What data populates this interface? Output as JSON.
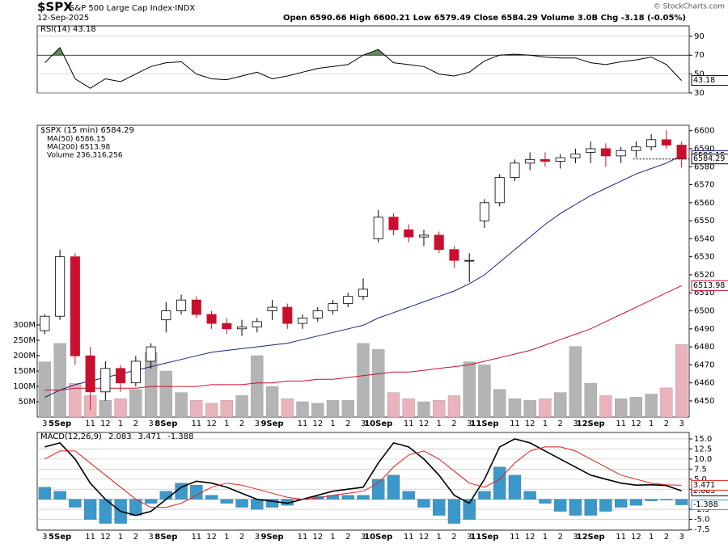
{
  "header": {
    "symbol": "$SPX",
    "name": "S&P 500 Large Cap Index·INDX",
    "date": "12-Sep-2025",
    "quote": "Open 6590.66  High 6600.21  Low 6579.49  Close 6584.29  Volume 3.0B  Chg -3.18 (-0.05%)",
    "copyright": "© StockCharts.com"
  },
  "chart_data": [
    {
      "type": "line",
      "title": "RSI(14) 43.18",
      "color": "#000000",
      "overbought_level": 70,
      "overbought_color": "#5f8f5a",
      "ylim": [
        30,
        101
      ],
      "yticks": [
        30,
        50,
        70,
        90
      ],
      "values": [
        62,
        78,
        45,
        35,
        45,
        42,
        50,
        58,
        62,
        63,
        50,
        45,
        44,
        48,
        52,
        45,
        48,
        52,
        56,
        58,
        60,
        70,
        76,
        62,
        60,
        58,
        50,
        48,
        52,
        64,
        70,
        71,
        70,
        68,
        67,
        67,
        62,
        60,
        63,
        65,
        68,
        60,
        43.18
      ]
    },
    {
      "type": "candlestick",
      "title": "$SPX (15 min) 6584.29",
      "up_color": "#ffffff",
      "down_color": "#c8102e",
      "ylim": [
        6441,
        6603
      ],
      "yticks": [
        6450,
        6460,
        6470,
        6480,
        6490,
        6500,
        6510,
        6520,
        6530,
        6540,
        6550,
        6560,
        6570,
        6580,
        6590,
        6600
      ],
      "categories": [
        "3",
        "5Sep",
        null,
        "11",
        "12",
        "1",
        "2",
        "3",
        "8Sep",
        null,
        "11",
        "12",
        "1",
        "2",
        "3",
        "9Sep",
        null,
        "11",
        "12",
        "1",
        "2",
        "3",
        "10Sep",
        null,
        "11",
        "12",
        "1",
        "2",
        "3",
        "11Sep",
        null,
        "11",
        "12",
        "1",
        "2",
        "3",
        "12Sep",
        null,
        "11",
        "12",
        "1",
        "2",
        "3"
      ],
      "open": [
        6489,
        6497,
        6530,
        6475,
        6455,
        6468,
        6460,
        6472,
        6495,
        6500,
        6506,
        6498,
        6493,
        6490,
        6491,
        6500,
        6502,
        6493,
        6496,
        6500,
        6504,
        6508,
        6540,
        6552,
        6545,
        6541,
        6542,
        6534,
        6528,
        6550,
        6560,
        6574,
        6582,
        6584,
        6583,
        6585,
        6588,
        6590,
        6586,
        6589,
        6591,
        6595,
        6592
      ],
      "high": [
        6498,
        6534,
        6532,
        6480,
        6472,
        6470,
        6475,
        6482,
        6505,
        6509,
        6508,
        6500,
        6496,
        6495,
        6496,
        6506,
        6504,
        6498,
        6502,
        6506,
        6510,
        6518,
        6556,
        6554,
        6548,
        6545,
        6544,
        6536,
        6532,
        6562,
        6576,
        6584,
        6588,
        6588,
        6587,
        6590,
        6594,
        6593,
        6591,
        6594,
        6598,
        6600.21,
        6594
      ],
      "low": [
        6487,
        6495,
        6470,
        6445,
        6450,
        6455,
        6458,
        6468,
        6488,
        6498,
        6496,
        6490,
        6487,
        6486,
        6488,
        6495,
        6490,
        6490,
        6494,
        6498,
        6502,
        6506,
        6538,
        6542,
        6538,
        6536,
        6532,
        6524,
        6516,
        6546,
        6558,
        6572,
        6578,
        6580,
        6579,
        6582,
        6582,
        6580,
        6582,
        6585,
        6589,
        6590,
        6579.49
      ],
      "close": [
        6497,
        6530,
        6475,
        6455,
        6468,
        6460,
        6472,
        6480,
        6500,
        6506,
        6498,
        6493,
        6490,
        6491,
        6494,
        6502,
        6493,
        6496,
        6500,
        6504,
        6508,
        6512,
        6552,
        6545,
        6541,
        6542,
        6534,
        6528,
        6528,
        6560,
        6574,
        6582,
        6584,
        6583,
        6585,
        6587,
        6590,
        6586,
        6589,
        6591,
        6595,
        6592,
        6584.29
      ],
      "series": [
        {
          "name": "MA(50) 6586.15",
          "color": "#1a237e",
          "values": [
            6452,
            6456,
            6459,
            6461,
            6463,
            6465,
            6467,
            6469,
            6471,
            6473,
            6475,
            6477,
            6478,
            6479,
            6480,
            6481,
            6482,
            6484,
            6486,
            6488,
            6490,
            6492,
            6496,
            6499,
            6502,
            6505,
            6508,
            6511,
            6515,
            6520,
            6527,
            6534,
            6541,
            6548,
            6554,
            6559,
            6564,
            6568,
            6572,
            6576,
            6579,
            6582,
            6586.15
          ]
        },
        {
          "name": "MA(200) 6513.98",
          "color": "#c8102e",
          "values": [
            6456,
            6456,
            6457,
            6457,
            6457,
            6457,
            6457,
            6458,
            6458,
            6458,
            6458,
            6459,
            6459,
            6459,
            6460,
            6460,
            6461,
            6461,
            6462,
            6462,
            6463,
            6464,
            6465,
            6466,
            6466,
            6467,
            6468,
            6469,
            6470,
            6472,
            6474,
            6476,
            6478,
            6481,
            6484,
            6487,
            6490,
            6494,
            6498,
            6502,
            6506,
            6510,
            6513.98
          ]
        }
      ],
      "volume": {
        "name": "Volume 236,316,256",
        "up_color": "#b4b4b4",
        "down_color": "#eab3bb",
        "vlim": [
          0,
          950
        ],
        "vticks": [
          {
            "value": 50,
            "label": "50M"
          },
          {
            "value": 100,
            "label": "100M"
          },
          {
            "value": 150,
            "label": "150M"
          },
          {
            "value": 200,
            "label": "200M"
          },
          {
            "value": 250,
            "label": "250M"
          },
          {
            "value": 300,
            "label": "300M"
          }
        ],
        "values": [
          180,
          240,
          110,
          70,
          55,
          60,
          90,
          210,
          150,
          80,
          55,
          45,
          55,
          70,
          200,
          100,
          60,
          50,
          45,
          55,
          55,
          240,
          220,
          80,
          60,
          50,
          55,
          70,
          180,
          170,
          90,
          60,
          55,
          60,
          80,
          230,
          110,
          70,
          60,
          65,
          75,
          95,
          236.316256
        ]
      }
    },
    {
      "type": "line",
      "title": "MACD(12,26,9)",
      "ylim": [
        -7.7,
        16.6
      ],
      "yticks": [
        {
          "value": 15,
          "label": "15.0"
        },
        12.5,
        {
          "value": 10,
          "label": "10.0"
        },
        7.5,
        {
          "value": 5,
          "label": "5.0"
        },
        2.5,
        -2.5,
        {
          "value": -5,
          "label": "-5.0"
        },
        -7.5
      ],
      "categories": [
        "3",
        "5Sep",
        null,
        "11",
        "12",
        "1",
        "2",
        "3",
        "8Sep",
        null,
        "11",
        "12",
        "1",
        "2",
        "3",
        "9Sep",
        null,
        "11",
        "12",
        "1",
        "2",
        "3",
        "10Sep",
        null,
        "11",
        "12",
        "1",
        "2",
        "3",
        "11Sep",
        null,
        "11",
        "12",
        "1",
        "2",
        "3",
        "12Sep",
        null,
        "11",
        "12",
        "1",
        "2",
        "3"
      ],
      "series": [
        {
          "name": "2.083",
          "color": "#000000",
          "style": "line",
          "values": [
            13,
            14,
            10,
            4,
            0,
            -3,
            -4,
            -3,
            0,
            3,
            4.5,
            4,
            3,
            1.5,
            0,
            -0.5,
            -1,
            0,
            1,
            2,
            2.5,
            3,
            9,
            14,
            13,
            10,
            6,
            1,
            -1,
            5,
            13,
            15,
            14,
            12,
            10,
            8,
            6,
            5,
            4,
            3.5,
            3.6,
            3.4,
            2.083
          ]
        },
        {
          "name": "3.471",
          "color": "#e0201c",
          "style": "line",
          "values": [
            10,
            12,
            12,
            9,
            6,
            3,
            0,
            -2,
            -2,
            -1,
            1,
            3,
            4,
            3.5,
            2.5,
            1.5,
            0.5,
            0,
            0.3,
            1,
            1.5,
            2,
            4,
            8,
            11,
            12,
            10,
            7,
            4,
            3,
            5,
            9,
            12,
            13,
            13,
            12,
            10,
            8,
            6,
            5,
            4,
            3.6,
            3.471
          ]
        },
        {
          "name": "-1.388",
          "color": "#3c98c8",
          "style": "bar",
          "values": [
            3,
            2,
            -2,
            -5,
            -6,
            -6,
            -4,
            -1,
            2,
            4,
            3.5,
            1,
            -1,
            -2,
            -2.5,
            -2,
            -1.5,
            0,
            0.7,
            1,
            1,
            1,
            5,
            6,
            2,
            -2,
            -4,
            -6,
            -5,
            2,
            8,
            6,
            2,
            -1,
            -3,
            -4,
            -4,
            -3,
            -2,
            -1.5,
            -0.4,
            -0.2,
            -1.388
          ]
        }
      ]
    }
  ]
}
